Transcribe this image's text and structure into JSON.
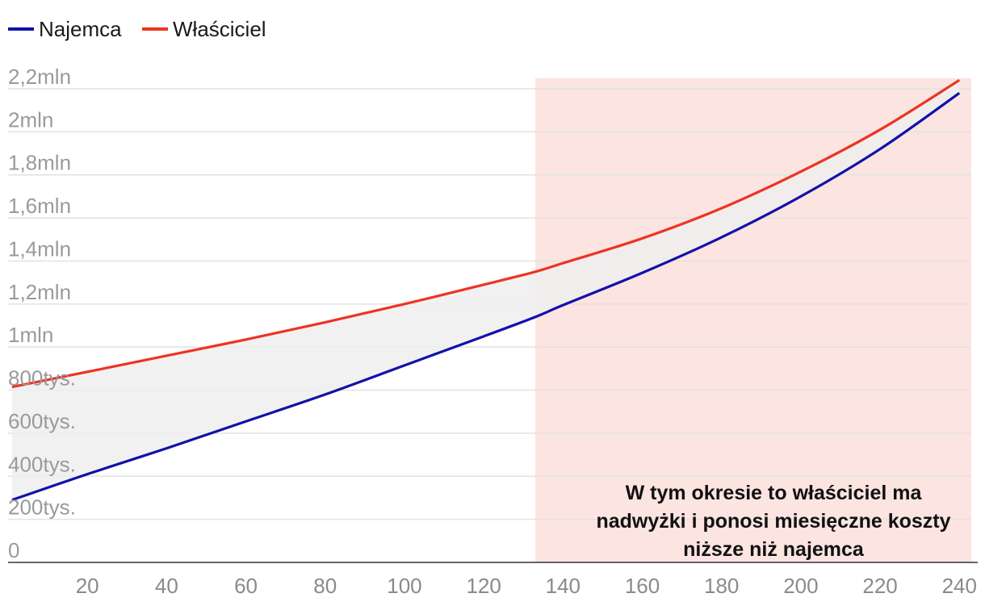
{
  "chart_data": {
    "type": "line",
    "title": "",
    "xlabel": "",
    "ylabel": "",
    "xlim": [
      0,
      243
    ],
    "ylim": [
      0,
      2200000
    ],
    "x_ticks": [
      20,
      40,
      60,
      80,
      100,
      120,
      140,
      160,
      180,
      200,
      220,
      240
    ],
    "x_tick_labels": [
      "20",
      "40",
      "60",
      "80",
      "100",
      "120",
      "140",
      "160",
      "180",
      "200",
      "220",
      "240"
    ],
    "y_ticks": [
      0,
      200000,
      400000,
      600000,
      800000,
      1000000,
      1200000,
      1400000,
      1600000,
      1800000,
      2000000,
      2200000
    ],
    "y_tick_labels": [
      "0",
      "200tys.",
      "400tys.",
      "600tys.",
      "800tys.",
      "1mln",
      "1,2mln",
      "1,4mln",
      "1,6mln",
      "1,8mln",
      "2mln",
      "2,2mln"
    ],
    "grid": true,
    "legend_position": "top-left",
    "x": [
      1,
      20,
      40,
      60,
      80,
      100,
      120,
      133,
      140,
      160,
      180,
      200,
      220,
      240
    ],
    "series": [
      {
        "name": "Najemca",
        "color": "#1111aa",
        "values": [
          290000,
          410000,
          530000,
          655000,
          780000,
          915000,
          1050000,
          1140000,
          1195000,
          1345000,
          1510000,
          1700000,
          1920000,
          2180000
        ]
      },
      {
        "name": "Właściciel",
        "color": "#ee3322",
        "values": [
          815000,
          885000,
          960000,
          1035000,
          1115000,
          1200000,
          1290000,
          1350000,
          1390000,
          1505000,
          1645000,
          1815000,
          2010000,
          2240000
        ]
      }
    ],
    "fill_between_color": "#efefef",
    "highlight_region": {
      "x_from": 133,
      "x_to": 243,
      "color": "#fce4e1",
      "annotation": "W tym okresie to właściciel ma nadwyżki i ponosi miesięczne koszty niższe niż najemca",
      "annotation_lines": [
        "W tym okresie to właściciel ma",
        "nadwyżki i ponosi miesięczne koszty",
        "niższe niż najemca"
      ]
    }
  }
}
